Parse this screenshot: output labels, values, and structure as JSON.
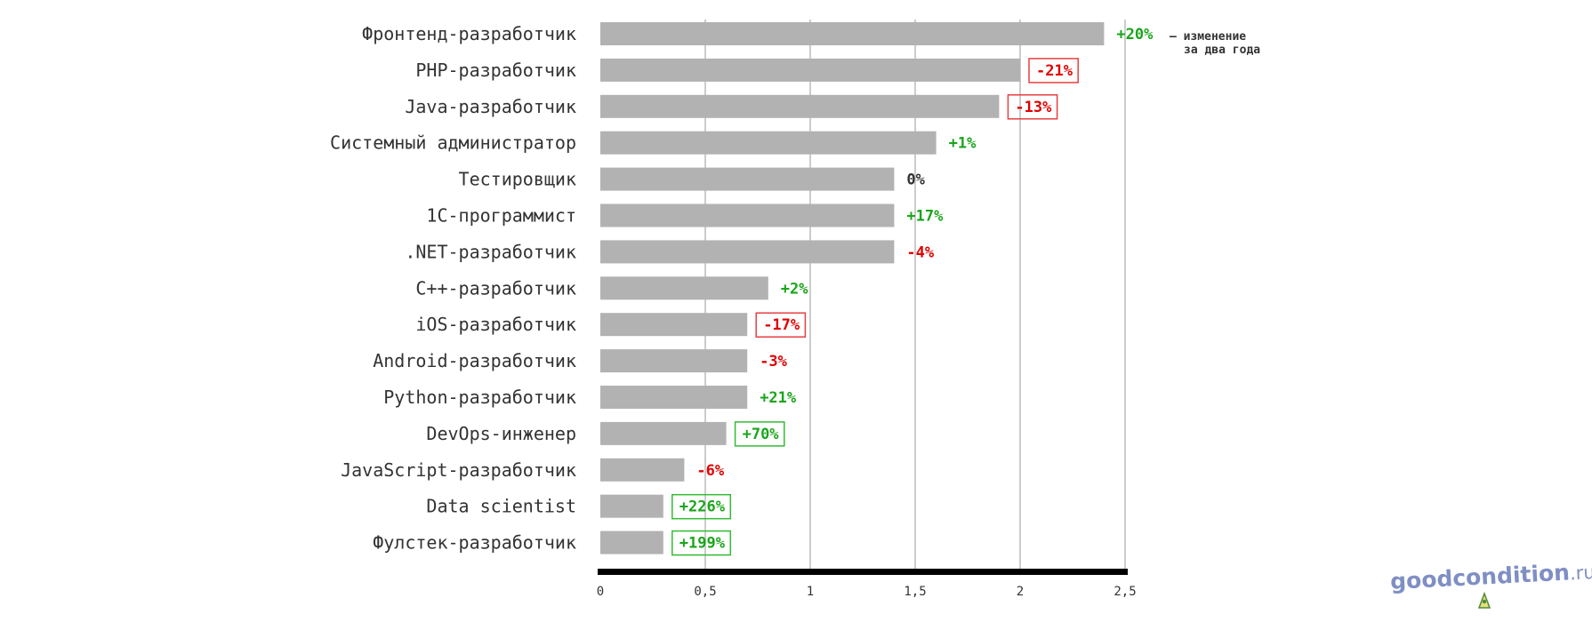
{
  "chart_data": {
    "type": "bar",
    "orientation": "horizontal",
    "categories": [
      "Фронтенд-разработчик",
      "PHP-разработчик",
      "Java-разработчик",
      "Системный администратор",
      "Тестировщик",
      "1С-программист",
      ".NET-разработчик",
      "C++-разработчик",
      "iOS-разработчик",
      "Android-разработчик",
      "Python-разработчик",
      "DevOps-инженер",
      "JavaScript-разработчик",
      "Data scientist",
      "Фулстек-разработчик"
    ],
    "values": [
      2.4,
      2.0,
      1.9,
      1.6,
      1.4,
      1.4,
      1.4,
      0.8,
      0.7,
      0.7,
      0.7,
      0.6,
      0.4,
      0.3,
      0.3
    ],
    "changes": [
      "+20%",
      "-21%",
      "-13%",
      "+1%",
      "0%",
      "+17%",
      "-4%",
      "+2%",
      "-17%",
      "-3%",
      "+21%",
      "+70%",
      "-6%",
      "+226%",
      "+199%"
    ],
    "change_direction": [
      "up",
      "down",
      "down",
      "up",
      "flat",
      "up",
      "down",
      "up",
      "down",
      "down",
      "up",
      "up",
      "down",
      "up",
      "up"
    ],
    "change_boxed": [
      false,
      true,
      true,
      false,
      false,
      false,
      false,
      false,
      true,
      false,
      false,
      true,
      false,
      true,
      true
    ],
    "change_note": [
      "– изменение",
      "за два года"
    ],
    "xlim": [
      0,
      2.5
    ],
    "xticks": [
      "0",
      "0,5",
      "1",
      "1,5",
      "2",
      "2,5"
    ],
    "xtick_values": [
      0,
      0.5,
      1,
      1.5,
      2,
      2.5
    ],
    "grid": true,
    "title": "",
    "xlabel": "",
    "ylabel": ""
  },
  "colors": {
    "bar": "#b2b2b2",
    "up": "#1aa51a",
    "down": "#e00000",
    "flat": "#333333",
    "up_box": "#33bb33",
    "down_box": "#e84040",
    "axis": "#000000",
    "grid": "#cccccc"
  },
  "watermark": {
    "name": "goodcondition",
    "suffix": ".ru"
  }
}
